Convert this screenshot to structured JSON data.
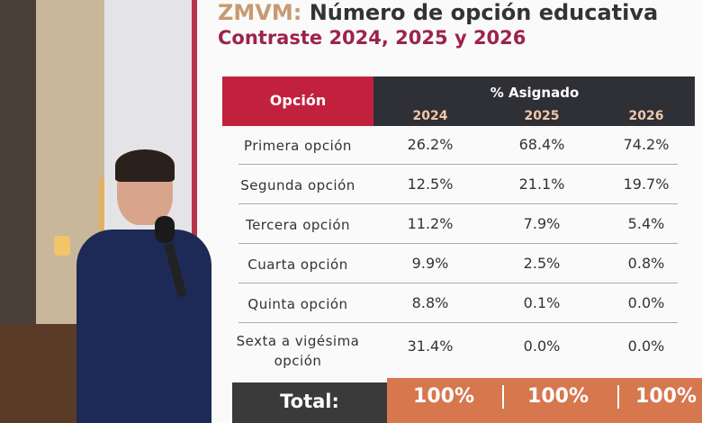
{
  "header": {
    "title_prefix": "ZMVM:",
    "title": "Número de opción educativa",
    "subtitle": "Contraste 2024, 2025 y 2026"
  },
  "table": {
    "header": {
      "option": "Opción",
      "group": "% Asignado",
      "years": [
        "2024",
        "2025",
        "2026"
      ]
    },
    "rows": [
      [
        "Primera opción",
        "26.2%",
        "68.4%",
        "74.2%"
      ],
      [
        "Segunda opción",
        "12.5%",
        "21.1%",
        "19.7%"
      ],
      [
        "Tercera opción",
        "11.2%",
        "7.9%",
        "5.4%"
      ],
      [
        "Cuarta opción",
        "9.9%",
        "2.5%",
        "0.8%"
      ],
      [
        "Quinta opción",
        "8.8%",
        "0.1%",
        "0.0%"
      ],
      [
        "Sexta a vigésima opción",
        "31.4%",
        "0.0%",
        "0.0%"
      ]
    ],
    "total": {
      "label": "Total:",
      "values": [
        "100%",
        "100%",
        "100%"
      ]
    }
  }
}
